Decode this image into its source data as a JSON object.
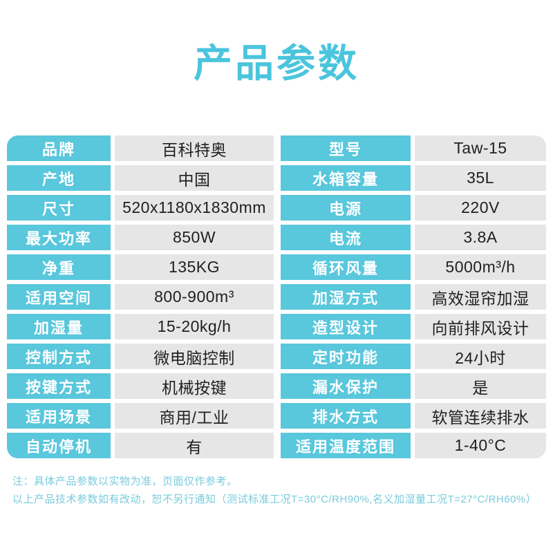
{
  "title": "产品参数",
  "colors": {
    "accent": "#4AC5DD",
    "label_bg": "#59C7DC",
    "value_bg": "#E6E6E6",
    "note_text": "#79CBDC"
  },
  "table": {
    "rows": [
      {
        "left": {
          "label": "品牌",
          "value": "百科特奥"
        },
        "right": {
          "label": "型号",
          "value": "Taw-15"
        }
      },
      {
        "left": {
          "label": "产地",
          "value": "中国"
        },
        "right": {
          "label": "水箱容量",
          "value": "35L"
        }
      },
      {
        "left": {
          "label": "尺寸",
          "value": "520x1180x1830mm"
        },
        "right": {
          "label": "电源",
          "value": "220V"
        }
      },
      {
        "left": {
          "label": "最大功率",
          "value": "850W"
        },
        "right": {
          "label": "电流",
          "value": "3.8A"
        }
      },
      {
        "left": {
          "label": "净重",
          "value": "135KG"
        },
        "right": {
          "label": "循环风量",
          "value": "5000m³/h"
        }
      },
      {
        "left": {
          "label": "适用空间",
          "value": "800-900m³"
        },
        "right": {
          "label": "加湿方式",
          "value": "高效湿帘加湿"
        }
      },
      {
        "left": {
          "label": "加湿量",
          "value": "15-20kg/h"
        },
        "right": {
          "label": "造型设计",
          "value": "向前排风设计"
        }
      },
      {
        "left": {
          "label": "控制方式",
          "value": "微电脑控制"
        },
        "right": {
          "label": "定时功能",
          "value": "24小时"
        }
      },
      {
        "left": {
          "label": "按键方式",
          "value": "机械按键"
        },
        "right": {
          "label": "漏水保护",
          "value": "是"
        }
      },
      {
        "left": {
          "label": "适用场景",
          "value": "商用/工业"
        },
        "right": {
          "label": "排水方式",
          "value": "软管连续排水"
        }
      },
      {
        "left": {
          "label": "自动停机",
          "value": "有"
        },
        "right": {
          "label": "适用温度范围",
          "value": "1-40°C"
        }
      }
    ]
  },
  "notes": {
    "line1": "注：具体产品参数以实物为准，页面仅作参考。",
    "line2": "以上产品技术参数如有改动，恕不另行通知（测试标准工况T=30°C/RH90%,名义加湿量工况T=27°C/RH60%）"
  }
}
